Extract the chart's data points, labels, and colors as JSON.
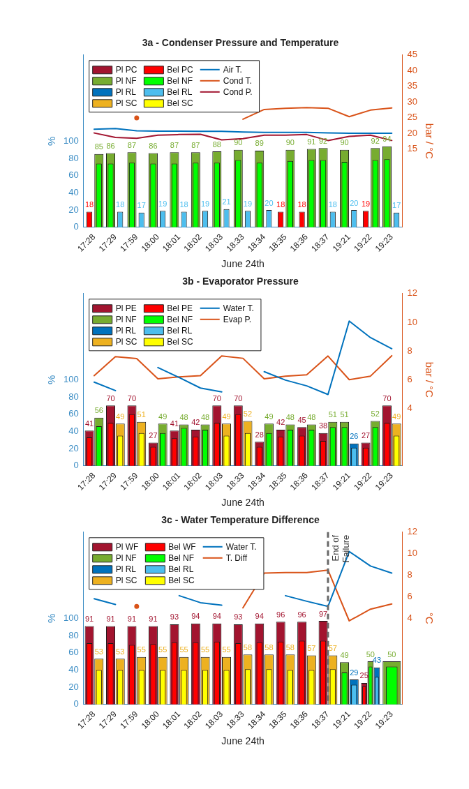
{
  "chart_data": [
    {
      "type": "bar",
      "title": "3a - Condenser Pressure and Temperature",
      "xlabel": "June 24th",
      "ylabel": "%",
      "y2label": "bar / °C",
      "categories": [
        "17:28",
        "17:29",
        "17:59",
        "18:00",
        "18:01",
        "18:02",
        "18:03",
        "18:33",
        "18:34",
        "18:35",
        "18:36",
        "18:37",
        "19:21",
        "19:22",
        "19:23"
      ],
      "ylim": [
        0,
        200
      ],
      "yticks": [
        0,
        20,
        40,
        60,
        80,
        100
      ],
      "y2lim": [
        -10,
        45
      ],
      "y2ticks": [
        15,
        20,
        25,
        30,
        35,
        40,
        45
      ],
      "legend": "top left",
      "marker": "none",
      "grid": false,
      "series": [
        {
          "name": "Pl PC",
          "color": "#a2142f",
          "values": [
            null,
            null,
            null,
            null,
            null,
            null,
            null,
            null,
            null,
            null,
            null,
            null,
            null,
            null,
            null
          ]
        },
        {
          "name": "Pl NF",
          "color": "#77ac30",
          "values": [
            85,
            86,
            87,
            86,
            87,
            87,
            88,
            90,
            89,
            90,
            91,
            92,
            90,
            92,
            94
          ],
          "value_labels": [
            "85",
            "86",
            "87",
            "86",
            "87",
            "87",
            "88",
            "90",
            "89",
            "90",
            "91",
            "92",
            "90",
            "92",
            "94"
          ]
        },
        {
          "name": "Pl RL",
          "color": "#0072bd",
          "values": [
            null,
            null,
            null,
            null,
            null,
            null,
            null,
            null,
            null,
            null,
            null,
            null,
            null,
            null,
            null
          ]
        },
        {
          "name": "Pl SC",
          "color": "#edb120",
          "values": [
            null,
            null,
            null,
            null,
            null,
            null,
            null,
            null,
            null,
            null,
            null,
            null,
            null,
            null,
            null
          ]
        },
        {
          "name": "Bel PC",
          "color": "#ff0000",
          "values": [
            18,
            null,
            null,
            null,
            null,
            null,
            null,
            null,
            null,
            18,
            18,
            null,
            null,
            19,
            null
          ],
          "value_labels": [
            "18",
            null,
            null,
            null,
            null,
            null,
            null,
            null,
            null,
            "18",
            "18",
            null,
            null,
            "19",
            null
          ]
        },
        {
          "name": "Bel NF",
          "color": "#00ff00",
          "values": [
            74,
            74,
            75,
            74,
            74,
            75,
            75,
            78,
            75,
            77,
            78,
            78,
            76,
            78,
            79
          ]
        },
        {
          "name": "Bel RL",
          "color": "#4dbeee",
          "values": [
            null,
            18,
            17,
            19,
            18,
            19,
            21,
            19,
            20,
            null,
            null,
            18,
            20,
            null,
            17
          ],
          "value_labels": [
            null,
            "18",
            "17",
            "19",
            "18",
            "19",
            "21",
            "19",
            "20",
            null,
            null,
            "18",
            "20",
            null,
            "17"
          ]
        },
        {
          "name": "Bel SC",
          "color": "#ffff00",
          "values": [
            null,
            null,
            null,
            null,
            null,
            null,
            null,
            null,
            null,
            null,
            null,
            null,
            null,
            null,
            null
          ]
        },
        {
          "name": "Air T.",
          "type": "line",
          "axis": "y2",
          "color": "#0072bd",
          "values": [
            21.3,
            21.5,
            20.8,
            20.7,
            20.7,
            20.6,
            20.6,
            20.4,
            20.3,
            20.3,
            20.3,
            20.1,
            20.0,
            20.0,
            20.0
          ]
        },
        {
          "name": "Cond T.",
          "type": "line",
          "axis": "y2",
          "color": "#d95319",
          "values": [
            null,
            null,
            24.9,
            null,
            null,
            null,
            null,
            24.5,
            27.6,
            28.0,
            28.2,
            28.0,
            25.3,
            27.4,
            28.1
          ]
        },
        {
          "name": "Cond P.",
          "type": "line",
          "axis": "y2",
          "color": "#a2142f",
          "values": [
            20.1,
            18.7,
            18.4,
            19.4,
            19.6,
            19.7,
            17.9,
            18.3,
            19.4,
            19.4,
            19.6,
            17.7,
            19.0,
            19.4,
            17.7
          ]
        }
      ]
    },
    {
      "type": "bar",
      "title": "3b - Evaporator Pressure",
      "xlabel": "June 24th",
      "ylabel": "%",
      "y2label": "bar / °C",
      "categories": [
        "17:28",
        "17:29",
        "17:59",
        "18:00",
        "18:01",
        "18:02",
        "18:03",
        "18:33",
        "18:34",
        "18:35",
        "18:36",
        "18:37",
        "19:21",
        "19:22",
        "19:23"
      ],
      "ylim": [
        0,
        200
      ],
      "yticks": [
        0,
        20,
        40,
        60,
        80,
        100
      ],
      "y2lim": [
        0,
        12
      ],
      "y2ticks": [
        4,
        6,
        8,
        10,
        12
      ],
      "legend": "top left",
      "marker": "none",
      "grid": false,
      "series": [
        {
          "name": "Pl PE",
          "color": "#a2142f",
          "values": [
            41,
            70,
            70,
            27,
            41,
            42,
            70,
            70,
            28,
            42,
            45,
            38,
            null,
            27,
            70
          ],
          "value_labels": [
            "41",
            "70",
            "70",
            "27",
            "41",
            "42",
            "70",
            "70",
            "28",
            "42",
            "45",
            "38",
            null,
            "27",
            "70"
          ]
        },
        {
          "name": "Pl NF",
          "color": "#77ac30",
          "values": [
            56,
            null,
            null,
            49,
            48,
            48,
            null,
            null,
            49,
            48,
            48,
            51,
            51,
            52,
            null
          ],
          "value_labels": [
            "56",
            null,
            null,
            "49",
            "48",
            "48",
            null,
            null,
            "49",
            "48",
            "48",
            "51",
            "51",
            "52",
            null
          ]
        },
        {
          "name": "Pl RL",
          "color": "#0072bd",
          "values": [
            null,
            null,
            null,
            null,
            null,
            null,
            null,
            null,
            null,
            null,
            null,
            null,
            26,
            null,
            null
          ],
          "value_labels": [
            null,
            null,
            null,
            null,
            null,
            null,
            null,
            null,
            null,
            null,
            null,
            null,
            "26",
            null,
            null
          ]
        },
        {
          "name": "Pl SC",
          "color": "#edb120",
          "values": [
            null,
            49,
            51,
            null,
            null,
            null,
            49,
            52,
            null,
            null,
            null,
            null,
            null,
            null,
            49
          ],
          "value_labels": [
            null,
            "49",
            "51",
            null,
            null,
            null,
            "49",
            "52",
            null,
            null,
            null,
            null,
            null,
            null,
            "49"
          ]
        },
        {
          "name": "Bel PE",
          "color": "#ff0000",
          "values": [
            33,
            50,
            60,
            22,
            32,
            34,
            50,
            60,
            22,
            34,
            35,
            29,
            null,
            21,
            50
          ]
        },
        {
          "name": "Bel NF",
          "color": "#00ff00",
          "values": [
            46,
            null,
            null,
            38,
            44,
            42,
            null,
            null,
            38,
            42,
            42,
            45,
            45,
            45,
            null
          ]
        },
        {
          "name": "Bel RL",
          "color": "#4dbeee",
          "values": [
            null,
            null,
            null,
            null,
            null,
            null,
            null,
            null,
            null,
            null,
            null,
            null,
            21,
            null,
            null
          ]
        },
        {
          "name": "Bel SC",
          "color": "#ffff00",
          "values": [
            null,
            35,
            38,
            null,
            null,
            null,
            35,
            38,
            null,
            null,
            null,
            null,
            null,
            null,
            35
          ]
        },
        {
          "name": "Water T.",
          "type": "line",
          "axis": "y2",
          "color": "#0072bd",
          "values": [
            5.83,
            5.24,
            null,
            6.85,
            6.15,
            5.42,
            5.15,
            null,
            6.56,
            5.97,
            5.57,
            4.97,
            10.08,
            8.93,
            8.16
          ]
        },
        {
          "name": "Evap P.",
          "type": "line",
          "axis": "y2",
          "color": "#d95319",
          "values": [
            6.28,
            7.6,
            7.47,
            6.06,
            6.2,
            6.28,
            7.65,
            7.49,
            6.06,
            6.25,
            6.34,
            7.65,
            6.0,
            6.25,
            7.67
          ]
        }
      ]
    },
    {
      "type": "bar",
      "title": "3c - Water Temperature Difference",
      "xlabel": "June 24th",
      "ylabel": "%",
      "y2label": "°C",
      "categories": [
        "17:28",
        "17:29",
        "17:59",
        "18:00",
        "18:01",
        "18:02",
        "18:03",
        "18:33",
        "18:34",
        "18:35",
        "18:36",
        "18:37",
        "19:21",
        "19:22",
        "19:23"
      ],
      "ylim": [
        0,
        200
      ],
      "yticks": [
        0,
        20,
        40,
        60,
        80,
        100
      ],
      "y2lim": [
        -4,
        12
      ],
      "y2ticks": [
        4,
        6,
        8,
        10,
        12
      ],
      "legend": "top left",
      "marker": "none",
      "grid": false,
      "ref_lines": [
        {
          "axis": "x",
          "value": "18:37",
          "label": "End of Failure",
          "color": "#696969",
          "line_style": "dashed"
        }
      ],
      "series": [
        {
          "name": "Pl WF",
          "color": "#a2142f",
          "values": [
            91,
            91,
            91,
            91,
            93,
            94,
            94,
            93,
            94,
            96,
            96,
            97,
            null,
            25,
            null
          ],
          "value_labels": [
            "91",
            "91",
            "91",
            "91",
            "93",
            "94",
            "94",
            "93",
            "94",
            "96",
            "96",
            "97",
            null,
            "25",
            null
          ]
        },
        {
          "name": "Pl NF",
          "color": "#77ac30",
          "values": [
            null,
            null,
            null,
            null,
            null,
            null,
            null,
            null,
            null,
            null,
            null,
            null,
            49,
            50,
            50
          ],
          "value_labels": [
            null,
            null,
            null,
            null,
            null,
            null,
            null,
            null,
            null,
            null,
            null,
            null,
            "49",
            "50",
            "50"
          ]
        },
        {
          "name": "Pl RL",
          "color": "#0072bd",
          "values": [
            null,
            null,
            null,
            null,
            null,
            null,
            null,
            null,
            null,
            null,
            null,
            null,
            29,
            43,
            null
          ],
          "value_labels": [
            null,
            null,
            null,
            null,
            null,
            null,
            null,
            null,
            null,
            null,
            null,
            null,
            "29",
            "43",
            null
          ]
        },
        {
          "name": "Pl SC",
          "color": "#edb120",
          "values": [
            53,
            53,
            55,
            55,
            55,
            55,
            55,
            58,
            58,
            58,
            57,
            57,
            null,
            null,
            null
          ],
          "value_labels": [
            "53",
            "53",
            "55",
            "55",
            "55",
            "55",
            "55",
            "58",
            "58",
            "58",
            "57",
            "57",
            null,
            null,
            null
          ]
        },
        {
          "name": "Bel WF",
          "color": "#ff0000",
          "values": [
            71,
            71,
            69,
            70,
            72,
            72,
            73,
            71,
            72,
            73,
            74,
            74,
            null,
            21,
            null
          ]
        },
        {
          "name": "Bel NF",
          "color": "#00ff00",
          "values": [
            null,
            null,
            null,
            null,
            null,
            null,
            null,
            null,
            null,
            null,
            null,
            null,
            37,
            44,
            44
          ]
        },
        {
          "name": "Bel RL",
          "color": "#4dbeee",
          "values": [
            null,
            null,
            null,
            null,
            null,
            null,
            null,
            null,
            null,
            null,
            null,
            null,
            23,
            32,
            null
          ]
        },
        {
          "name": "Bel SC",
          "color": "#ffff00",
          "values": [
            40,
            40,
            40,
            40,
            40,
            40,
            40,
            41,
            41,
            40,
            40,
            41,
            null,
            null,
            null
          ]
        },
        {
          "name": "Water T.",
          "type": "line",
          "axis": "y2",
          "color": "#0072bd",
          "values": [
            5.82,
            5.28,
            null,
            null,
            6.1,
            5.45,
            5.21,
            null,
            null,
            6.1,
            5.58,
            5.1,
            10.2,
            8.85,
            8.2
          ]
        },
        {
          "name": "T. Diff",
          "type": "line",
          "axis": "y2",
          "color": "#d95319",
          "values": [
            null,
            null,
            5.1,
            null,
            null,
            null,
            null,
            4.97,
            8.2,
            8.24,
            8.24,
            8.48,
            3.76,
            4.85,
            5.33
          ]
        }
      ]
    }
  ]
}
